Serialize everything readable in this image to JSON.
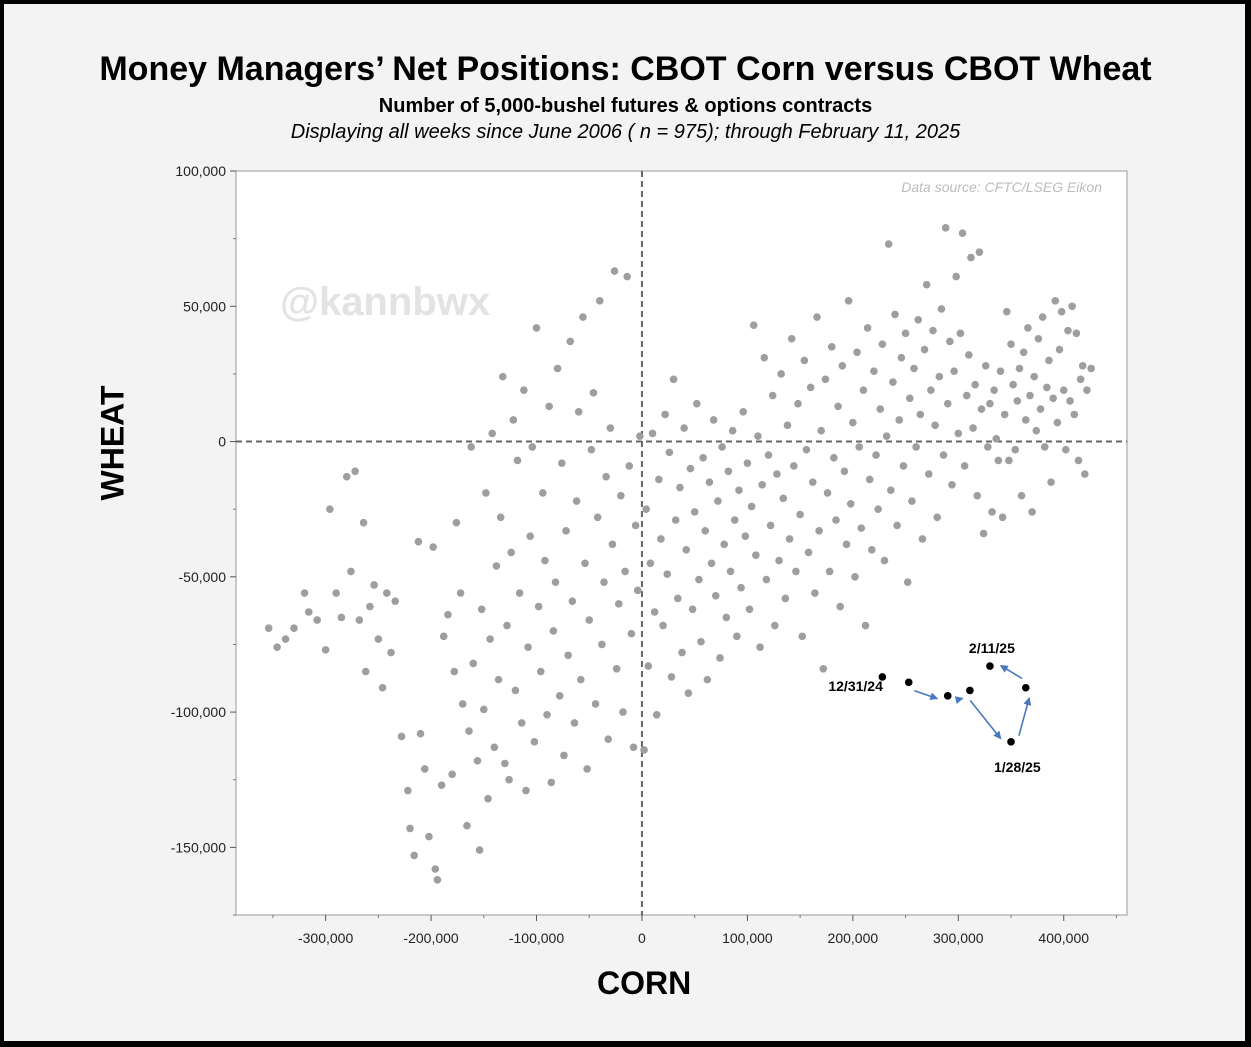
{
  "chart_data": {
    "type": "scatter",
    "title": "Money Managers’ Net Positions: CBOT Corn versus CBOT Wheat",
    "subtitle": "Number of 5,000-bushel futures & options contracts",
    "subtitle2": "Displaying all weeks since June 2006 ( n = 975); through February 11, 2025",
    "xlabel": "CORN",
    "ylabel": "WHEAT",
    "source": "Data source: CFTC/LSEG Eikon",
    "watermark": "@kannbwx",
    "xlim": [
      -385000,
      460000
    ],
    "ylim": [
      -175000,
      100000
    ],
    "x_ticks": [
      -300000,
      -200000,
      -100000,
      0,
      100000,
      200000,
      300000,
      400000
    ],
    "x_tick_labels": [
      "-300,000",
      "-200,000",
      "-100,000",
      "0",
      "100,000",
      "200,000",
      "300,000",
      "400,000"
    ],
    "y_ticks": [
      100000,
      50000,
      0,
      -50000,
      -100000,
      -150000
    ],
    "y_tick_labels": [
      "100,000",
      "50,000",
      "0",
      "-50,000",
      "-100,000",
      "-150,000"
    ],
    "zero_lines": "dashed",
    "grid": false,
    "point_color": "#9e9e9e",
    "highlight_color": "#000000",
    "arrow_color": "#4a78c0",
    "highlighted_series": [
      {
        "label": "12/31/24",
        "x": 228000,
        "y": -87000
      },
      {
        "label": "",
        "x": 253000,
        "y": -89000
      },
      {
        "label": "",
        "x": 290000,
        "y": -94000
      },
      {
        "label": "",
        "x": 311000,
        "y": -92000
      },
      {
        "label": "1/28/25",
        "x": 350000,
        "y": -111000
      },
      {
        "label": "",
        "x": 364000,
        "y": -91000
      },
      {
        "label": "2/11/25",
        "x": 330000,
        "y": -83000
      }
    ],
    "background_points_note": "approximate cloud of weekly observations",
    "background_points": [
      [
        -354000,
        -69000
      ],
      [
        -346000,
        -76000
      ],
      [
        -338000,
        -73000
      ],
      [
        -330000,
        -69000
      ],
      [
        -320000,
        -56000
      ],
      [
        -316000,
        -63000
      ],
      [
        -308000,
        -66000
      ],
      [
        -300000,
        -77000
      ],
      [
        -296000,
        -25000
      ],
      [
        -290000,
        -56000
      ],
      [
        -285000,
        -65000
      ],
      [
        -280000,
        -13000
      ],
      [
        -276000,
        -48000
      ],
      [
        -272000,
        -11000
      ],
      [
        -268000,
        -66000
      ],
      [
        -264000,
        -30000
      ],
      [
        -262000,
        -85000
      ],
      [
        -258000,
        -61000
      ],
      [
        -254000,
        -53000
      ],
      [
        -250000,
        -73000
      ],
      [
        -246000,
        -91000
      ],
      [
        -242000,
        -56000
      ],
      [
        -238000,
        -78000
      ],
      [
        -234000,
        -59000
      ],
      [
        -228000,
        -109000
      ],
      [
        -222000,
        -129000
      ],
      [
        -220000,
        -143000
      ],
      [
        -216000,
        -153000
      ],
      [
        -212000,
        -37000
      ],
      [
        -210000,
        -108000
      ],
      [
        -206000,
        -121000
      ],
      [
        -202000,
        -146000
      ],
      [
        -198000,
        -39000
      ],
      [
        -196000,
        -158000
      ],
      [
        -194000,
        -162000
      ],
      [
        -190000,
        -127000
      ],
      [
        -188000,
        -72000
      ],
      [
        -184000,
        -64000
      ],
      [
        -180000,
        -123000
      ],
      [
        -178000,
        -85000
      ],
      [
        -176000,
        -30000
      ],
      [
        -172000,
        -56000
      ],
      [
        -170000,
        -97000
      ],
      [
        -166000,
        -142000
      ],
      [
        -164000,
        -107000
      ],
      [
        -162000,
        -2000
      ],
      [
        -160000,
        -82000
      ],
      [
        -156000,
        -118000
      ],
      [
        -154000,
        -151000
      ],
      [
        -152000,
        -62000
      ],
      [
        -150000,
        -99000
      ],
      [
        -148000,
        -19000
      ],
      [
        -146000,
        -132000
      ],
      [
        -144000,
        -73000
      ],
      [
        -142000,
        3000
      ],
      [
        -140000,
        -113000
      ],
      [
        -138000,
        -46000
      ],
      [
        -136000,
        -88000
      ],
      [
        -134000,
        -28000
      ],
      [
        -132000,
        24000
      ],
      [
        -130000,
        -119000
      ],
      [
        -128000,
        -68000
      ],
      [
        -126000,
        -125000
      ],
      [
        -124000,
        -41000
      ],
      [
        -122000,
        8000
      ],
      [
        -120000,
        -92000
      ],
      [
        -118000,
        -7000
      ],
      [
        -116000,
        -56000
      ],
      [
        -114000,
        -104000
      ],
      [
        -112000,
        19000
      ],
      [
        -110000,
        -129000
      ],
      [
        -108000,
        -76000
      ],
      [
        -106000,
        -35000
      ],
      [
        -104000,
        -2000
      ],
      [
        -102000,
        -111000
      ],
      [
        -100000,
        42000
      ],
      [
        -98000,
        -61000
      ],
      [
        -96000,
        -85000
      ],
      [
        -94000,
        -19000
      ],
      [
        -92000,
        -44000
      ],
      [
        -90000,
        -101000
      ],
      [
        -88000,
        13000
      ],
      [
        -86000,
        -126000
      ],
      [
        -84000,
        -70000
      ],
      [
        -82000,
        -52000
      ],
      [
        -80000,
        27000
      ],
      [
        -78000,
        -94000
      ],
      [
        -76000,
        -8000
      ],
      [
        -74000,
        -116000
      ],
      [
        -72000,
        -33000
      ],
      [
        -70000,
        -79000
      ],
      [
        -68000,
        37000
      ],
      [
        -66000,
        -59000
      ],
      [
        -64000,
        -104000
      ],
      [
        -62000,
        -22000
      ],
      [
        -60000,
        11000
      ],
      [
        -58000,
        -88000
      ],
      [
        -56000,
        46000
      ],
      [
        -54000,
        -45000
      ],
      [
        -52000,
        -121000
      ],
      [
        -50000,
        -66000
      ],
      [
        -48000,
        -3000
      ],
      [
        -46000,
        18000
      ],
      [
        -44000,
        -97000
      ],
      [
        -42000,
        -28000
      ],
      [
        -40000,
        52000
      ],
      [
        -38000,
        -75000
      ],
      [
        -36000,
        -52000
      ],
      [
        -34000,
        -13000
      ],
      [
        -32000,
        -110000
      ],
      [
        -30000,
        5000
      ],
      [
        -28000,
        -38000
      ],
      [
        -26000,
        63000
      ],
      [
        -24000,
        -84000
      ],
      [
        -22000,
        -60000
      ],
      [
        -20000,
        -20000
      ],
      [
        -18000,
        -100000
      ],
      [
        -16000,
        -48000
      ],
      [
        -14000,
        61000
      ],
      [
        -12000,
        -9000
      ],
      [
        -10000,
        -71000
      ],
      [
        -8000,
        -113000
      ],
      [
        -6000,
        -31000
      ],
      [
        -4000,
        -55000
      ],
      [
        -2000,
        2000
      ],
      [
        2000,
        -114000
      ],
      [
        4000,
        -25000
      ],
      [
        6000,
        -83000
      ],
      [
        8000,
        -45000
      ],
      [
        10000,
        3000
      ],
      [
        12000,
        -63000
      ],
      [
        14000,
        -101000
      ],
      [
        16000,
        -14000
      ],
      [
        18000,
        -36000
      ],
      [
        20000,
        -68000
      ],
      [
        22000,
        10000
      ],
      [
        24000,
        -49000
      ],
      [
        26000,
        -4000
      ],
      [
        28000,
        -87000
      ],
      [
        30000,
        23000
      ],
      [
        32000,
        -29000
      ],
      [
        34000,
        -58000
      ],
      [
        36000,
        -17000
      ],
      [
        38000,
        -78000
      ],
      [
        40000,
        5000
      ],
      [
        42000,
        -40000
      ],
      [
        44000,
        -93000
      ],
      [
        46000,
        -10000
      ],
      [
        48000,
        -62000
      ],
      [
        50000,
        -26000
      ],
      [
        52000,
        14000
      ],
      [
        54000,
        -51000
      ],
      [
        56000,
        -74000
      ],
      [
        58000,
        -6000
      ],
      [
        60000,
        -33000
      ],
      [
        62000,
        -88000
      ],
      [
        64000,
        -15000
      ],
      [
        66000,
        -45000
      ],
      [
        68000,
        8000
      ],
      [
        70000,
        -57000
      ],
      [
        72000,
        -22000
      ],
      [
        74000,
        -80000
      ],
      [
        76000,
        -2000
      ],
      [
        78000,
        -38000
      ],
      [
        80000,
        -65000
      ],
      [
        82000,
        -11000
      ],
      [
        84000,
        -48000
      ],
      [
        86000,
        4000
      ],
      [
        88000,
        -29000
      ],
      [
        90000,
        -72000
      ],
      [
        92000,
        -18000
      ],
      [
        94000,
        -54000
      ],
      [
        96000,
        11000
      ],
      [
        98000,
        -35000
      ],
      [
        100000,
        -8000
      ],
      [
        102000,
        -62000
      ],
      [
        104000,
        -24000
      ],
      [
        106000,
        43000
      ],
      [
        108000,
        -42000
      ],
      [
        110000,
        2000
      ],
      [
        112000,
        -76000
      ],
      [
        114000,
        -16000
      ],
      [
        116000,
        31000
      ],
      [
        118000,
        -51000
      ],
      [
        120000,
        -5000
      ],
      [
        122000,
        -31000
      ],
      [
        124000,
        17000
      ],
      [
        126000,
        -68000
      ],
      [
        128000,
        -12000
      ],
      [
        130000,
        -44000
      ],
      [
        132000,
        25000
      ],
      [
        134000,
        -21000
      ],
      [
        136000,
        -58000
      ],
      [
        138000,
        6000
      ],
      [
        140000,
        -36000
      ],
      [
        142000,
        38000
      ],
      [
        144000,
        -9000
      ],
      [
        146000,
        -48000
      ],
      [
        148000,
        14000
      ],
      [
        150000,
        -27000
      ],
      [
        152000,
        -72000
      ],
      [
        154000,
        30000
      ],
      [
        156000,
        -3000
      ],
      [
        158000,
        -41000
      ],
      [
        160000,
        20000
      ],
      [
        162000,
        -15000
      ],
      [
        164000,
        -56000
      ],
      [
        166000,
        46000
      ],
      [
        168000,
        -33000
      ],
      [
        170000,
        4000
      ],
      [
        172000,
        -84000
      ],
      [
        174000,
        23000
      ],
      [
        176000,
        -19000
      ],
      [
        178000,
        -48000
      ],
      [
        180000,
        35000
      ],
      [
        182000,
        -6000
      ],
      [
        184000,
        -29000
      ],
      [
        186000,
        13000
      ],
      [
        188000,
        -61000
      ],
      [
        190000,
        28000
      ],
      [
        192000,
        -11000
      ],
      [
        194000,
        -38000
      ],
      [
        196000,
        52000
      ],
      [
        198000,
        -23000
      ],
      [
        200000,
        7000
      ],
      [
        202000,
        -50000
      ],
      [
        204000,
        33000
      ],
      [
        206000,
        -2000
      ],
      [
        208000,
        -32000
      ],
      [
        210000,
        19000
      ],
      [
        212000,
        -68000
      ],
      [
        214000,
        42000
      ],
      [
        216000,
        -14000
      ],
      [
        218000,
        -40000
      ],
      [
        220000,
        26000
      ],
      [
        222000,
        -5000
      ],
      [
        224000,
        -25000
      ],
      [
        226000,
        12000
      ],
      [
        228000,
        36000
      ],
      [
        230000,
        -44000
      ],
      [
        232000,
        2000
      ],
      [
        234000,
        73000
      ],
      [
        236000,
        -18000
      ],
      [
        238000,
        22000
      ],
      [
        240000,
        47000
      ],
      [
        242000,
        -31000
      ],
      [
        244000,
        8000
      ],
      [
        246000,
        31000
      ],
      [
        248000,
        -9000
      ],
      [
        250000,
        40000
      ],
      [
        252000,
        -52000
      ],
      [
        254000,
        16000
      ],
      [
        256000,
        -22000
      ],
      [
        258000,
        27000
      ],
      [
        260000,
        -2000
      ],
      [
        262000,
        45000
      ],
      [
        264000,
        10000
      ],
      [
        266000,
        -36000
      ],
      [
        268000,
        34000
      ],
      [
        270000,
        58000
      ],
      [
        272000,
        -12000
      ],
      [
        274000,
        19000
      ],
      [
        276000,
        41000
      ],
      [
        278000,
        6000
      ],
      [
        280000,
        -28000
      ],
      [
        282000,
        24000
      ],
      [
        284000,
        49000
      ],
      [
        286000,
        -5000
      ],
      [
        288000,
        79000
      ],
      [
        290000,
        14000
      ],
      [
        292000,
        37000
      ],
      [
        294000,
        -16000
      ],
      [
        296000,
        26000
      ],
      [
        298000,
        61000
      ],
      [
        300000,
        3000
      ],
      [
        302000,
        40000
      ],
      [
        304000,
        77000
      ],
      [
        306000,
        -9000
      ],
      [
        308000,
        17000
      ],
      [
        310000,
        32000
      ],
      [
        312000,
        68000
      ],
      [
        314000,
        5000
      ],
      [
        316000,
        21000
      ],
      [
        318000,
        -20000
      ],
      [
        320000,
        70000
      ],
      [
        322000,
        12000
      ],
      [
        324000,
        -34000
      ],
      [
        326000,
        28000
      ],
      [
        328000,
        -2000
      ],
      [
        330000,
        14000
      ],
      [
        332000,
        -26000
      ],
      [
        334000,
        19000
      ],
      [
        336000,
        1000
      ],
      [
        338000,
        -7000
      ],
      [
        340000,
        26000
      ],
      [
        342000,
        -28000
      ],
      [
        344000,
        10000
      ],
      [
        346000,
        48000
      ],
      [
        348000,
        -7000
      ],
      [
        350000,
        36000
      ],
      [
        352000,
        21000
      ],
      [
        354000,
        -3000
      ],
      [
        356000,
        15000
      ],
      [
        358000,
        27000
      ],
      [
        360000,
        -20000
      ],
      [
        362000,
        33000
      ],
      [
        364000,
        8000
      ],
      [
        366000,
        42000
      ],
      [
        368000,
        17000
      ],
      [
        370000,
        -26000
      ],
      [
        372000,
        24000
      ],
      [
        374000,
        4000
      ],
      [
        376000,
        38000
      ],
      [
        378000,
        12000
      ],
      [
        380000,
        46000
      ],
      [
        382000,
        -2000
      ],
      [
        384000,
        20000
      ],
      [
        386000,
        30000
      ],
      [
        388000,
        -15000
      ],
      [
        390000,
        16000
      ],
      [
        392000,
        52000
      ],
      [
        394000,
        7000
      ],
      [
        396000,
        34000
      ],
      [
        398000,
        48000
      ],
      [
        400000,
        19000
      ],
      [
        402000,
        -3000
      ],
      [
        404000,
        41000
      ],
      [
        406000,
        15000
      ],
      [
        408000,
        50000
      ],
      [
        410000,
        10000
      ],
      [
        412000,
        40000
      ],
      [
        414000,
        -7000
      ],
      [
        416000,
        23000
      ],
      [
        418000,
        28000
      ],
      [
        420000,
        -12000
      ],
      [
        422000,
        19000
      ],
      [
        426000,
        27000
      ]
    ]
  }
}
